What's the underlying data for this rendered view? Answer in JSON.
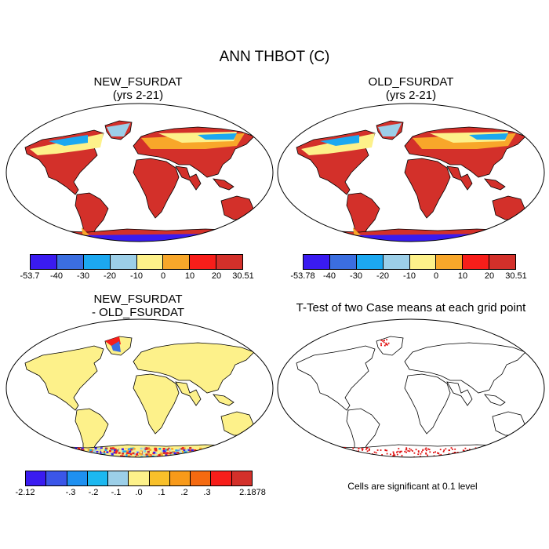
{
  "title": "ANN THBOT (C)",
  "panels": [
    {
      "id": "new",
      "title_line1": "NEW_FSURDAT",
      "title_line2": "(yrs 2-21)",
      "colorbar": {
        "colors": [
          "#3a1bf0",
          "#3b6ee0",
          "#1ca8f0",
          "#9ccfe8",
          "#fdf18a",
          "#f8a72a",
          "#f71e1a",
          "#d3302a"
        ],
        "labels": [
          "-53.7",
          "-40",
          "-30",
          "-20",
          "-10",
          "0",
          "10",
          "20",
          "30.51"
        ]
      }
    },
    {
      "id": "old",
      "title_line1": "OLD_FSURDAT",
      "title_line2": "(yrs 2-21)",
      "colorbar": {
        "colors": [
          "#3a1bf0",
          "#3b6ee0",
          "#1ca8f0",
          "#9ccfe8",
          "#fdf18a",
          "#f8a72a",
          "#f71e1a",
          "#d3302a"
        ],
        "labels": [
          "-53.78",
          "-40",
          "-30",
          "-20",
          "-10",
          "0",
          "10",
          "20",
          "30.51"
        ]
      }
    },
    {
      "id": "diff",
      "title_line1": "NEW_FSURDAT",
      "title_line2": "- OLD_FSURDAT",
      "colorbar": {
        "colors": [
          "#3a1bf0",
          "#3b56e8",
          "#1e90f0",
          "#1cb8f0",
          "#9ccfe8",
          "#fdf18a",
          "#f8c02a",
          "#f89a1a",
          "#f56a10",
          "#f71e1a",
          "#d3302a"
        ],
        "labels": [
          "-2.12",
          "",
          "-.3",
          "-.2",
          "-.1",
          ".0",
          ".1",
          ".2",
          ".3",
          "",
          "2.1878"
        ]
      }
    },
    {
      "id": "ttest",
      "title_line1": "T-Test of two Case means at each grid point",
      "note": "Cells are significant at 0.1 level"
    }
  ]
}
